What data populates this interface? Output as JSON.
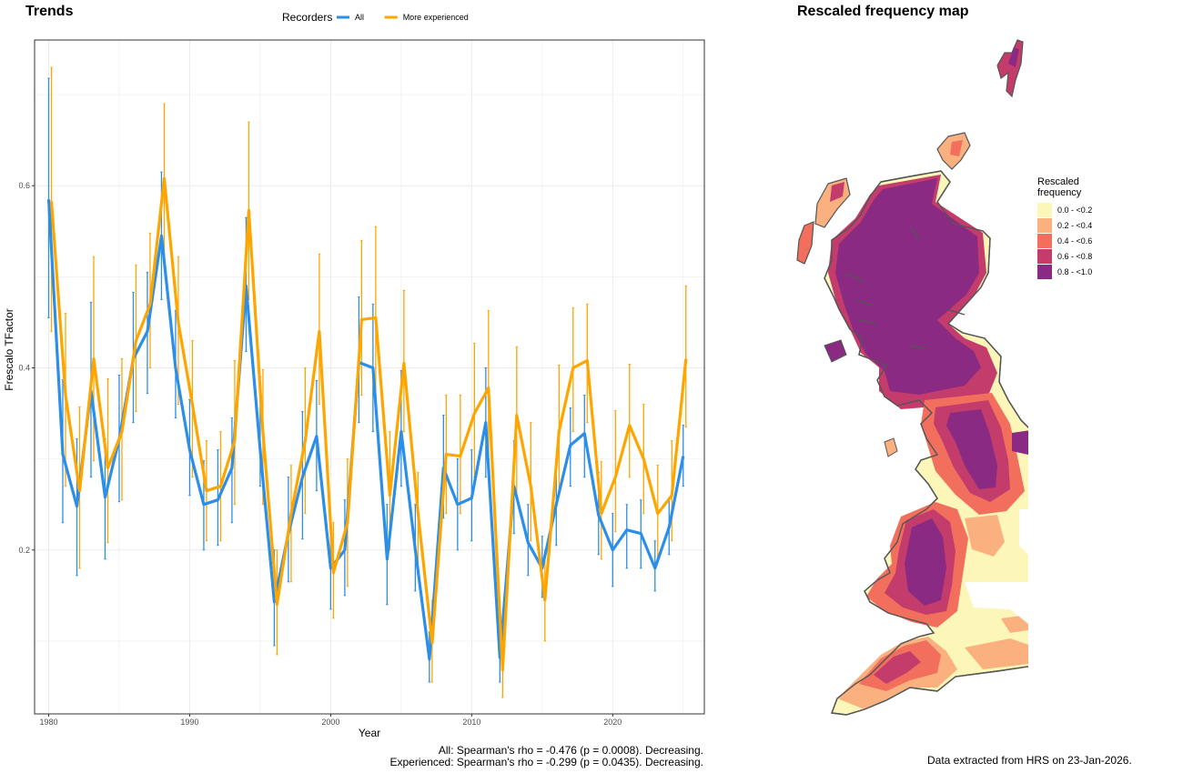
{
  "trends": {
    "title": "Trends",
    "stats_all": "All: Spearman's rho = -0.476 (p = 0.0008). Decreasing.",
    "stats_experienced": "Experienced: Spearman's rho = -0.299 (p = 0.0435). Decreasing."
  },
  "map": {
    "title": "Rescaled frequency map",
    "legend_title_line1": "Rescaled",
    "legend_title_line2": "frequency",
    "legend_items": [
      {
        "label": "0.0 - <0.2",
        "color": "#fcf7b9"
      },
      {
        "label": "0.2 - <0.4",
        "color": "#fab17f"
      },
      {
        "label": "0.4 - <0.6",
        "color": "#f16f5c"
      },
      {
        "label": "0.6 - <0.8",
        "color": "#c33c6c"
      },
      {
        "label": "0.8 - <1.0",
        "color": "#8b2a82"
      }
    ]
  },
  "footer": {
    "source": "Data extracted from HRS on 23-Jan-2026."
  },
  "chart_data": {
    "type": "line",
    "title": "Trends",
    "xlabel": "Year",
    "ylabel": "Frescalo TFactor",
    "legend_title": "Recorders",
    "legend_position": "top",
    "grid": true,
    "xlim": [
      1979,
      2026.5
    ],
    "ylim": [
      0.02,
      0.76
    ],
    "x_ticks": [
      1980,
      1990,
      2000,
      2010,
      2020
    ],
    "y_ticks": [
      0.2,
      0.4,
      0.6
    ],
    "y_tick_labels": [
      "0.2",
      "0.4",
      "0.6"
    ],
    "x": [
      1980,
      1981,
      1982,
      1983,
      1984,
      1985,
      1986,
      1987,
      1988,
      1989,
      1990,
      1991,
      1992,
      1993,
      1994,
      1995,
      1996,
      1997,
      1998,
      1999,
      2000,
      2001,
      2002,
      2003,
      2004,
      2005,
      2006,
      2007,
      2008,
      2009,
      2010,
      2011,
      2012,
      2013,
      2014,
      2015,
      2016,
      2017,
      2018,
      2019,
      2020,
      2021,
      2022,
      2023,
      2024,
      2025
    ],
    "series": [
      {
        "name": "All",
        "color": "#2b8ee8",
        "values": [
          0.585,
          0.305,
          0.248,
          0.375,
          0.258,
          0.322,
          0.41,
          0.44,
          0.545,
          0.4,
          0.31,
          0.25,
          0.255,
          0.29,
          0.49,
          0.31,
          0.143,
          0.218,
          0.28,
          0.325,
          0.18,
          0.2,
          0.406,
          0.4,
          0.19,
          0.33,
          0.2,
          0.08,
          0.29,
          0.25,
          0.257,
          0.34,
          0.082,
          0.27,
          0.208,
          0.18,
          0.25,
          0.315,
          0.328,
          0.238,
          0.2,
          0.222,
          0.218,
          0.18,
          0.225,
          0.303
        ],
        "lower": [
          0.455,
          0.23,
          0.172,
          0.28,
          0.19,
          0.253,
          0.34,
          0.372,
          0.475,
          0.345,
          0.26,
          0.2,
          0.205,
          0.23,
          0.418,
          0.27,
          0.095,
          0.165,
          0.212,
          0.265,
          0.135,
          0.15,
          0.34,
          0.33,
          0.14,
          0.27,
          0.155,
          0.055,
          0.235,
          0.2,
          0.21,
          0.28,
          0.055,
          0.218,
          0.172,
          0.148,
          0.205,
          0.27,
          0.28,
          0.195,
          0.16,
          0.18,
          0.18,
          0.155,
          0.195,
          0.27
        ],
        "upper": [
          0.718,
          0.387,
          0.322,
          0.472,
          0.322,
          0.392,
          0.483,
          0.505,
          0.615,
          0.463,
          0.365,
          0.298,
          0.31,
          0.345,
          0.565,
          0.39,
          0.2,
          0.28,
          0.352,
          0.386,
          0.225,
          0.255,
          0.478,
          0.47,
          0.25,
          0.397,
          0.25,
          0.11,
          0.348,
          0.3,
          0.31,
          0.4,
          0.11,
          0.32,
          0.25,
          0.215,
          0.3,
          0.356,
          0.37,
          0.285,
          0.24,
          0.25,
          0.255,
          0.21,
          0.255,
          0.337
        ]
      },
      {
        "name": "More experienced",
        "color": "#ffa500",
        "values": [
          0.583,
          0.37,
          0.265,
          0.41,
          0.29,
          0.33,
          0.43,
          0.47,
          0.608,
          0.45,
          0.36,
          0.265,
          0.27,
          0.32,
          0.573,
          0.33,
          0.14,
          0.24,
          0.32,
          0.44,
          0.175,
          0.23,
          0.453,
          0.455,
          0.26,
          0.405,
          0.24,
          0.098,
          0.305,
          0.303,
          0.35,
          0.378,
          0.068,
          0.348,
          0.27,
          0.145,
          0.33,
          0.4,
          0.408,
          0.24,
          0.28,
          0.337,
          0.3,
          0.24,
          0.26,
          0.41
        ],
        "lower": [
          0.44,
          0.27,
          0.18,
          0.298,
          0.208,
          0.255,
          0.352,
          0.4,
          0.525,
          0.36,
          0.28,
          0.21,
          0.21,
          0.25,
          0.475,
          0.25,
          0.085,
          0.165,
          0.24,
          0.36,
          0.125,
          0.16,
          0.37,
          0.37,
          0.2,
          0.33,
          0.18,
          0.055,
          0.24,
          0.24,
          0.28,
          0.3,
          0.038,
          0.26,
          0.21,
          0.1,
          0.26,
          0.33,
          0.34,
          0.19,
          0.22,
          0.28,
          0.24,
          0.19,
          0.21,
          0.335
        ],
        "upper": [
          0.73,
          0.46,
          0.357,
          0.522,
          0.388,
          0.41,
          0.513,
          0.548,
          0.69,
          0.522,
          0.43,
          0.32,
          0.33,
          0.408,
          0.67,
          0.398,
          0.2,
          0.293,
          0.4,
          0.525,
          0.23,
          0.3,
          0.54,
          0.555,
          0.33,
          0.485,
          0.285,
          0.145,
          0.37,
          0.37,
          0.427,
          0.463,
          0.105,
          0.423,
          0.34,
          0.2,
          0.403,
          0.466,
          0.47,
          0.297,
          0.353,
          0.404,
          0.36,
          0.293,
          0.32,
          0.49
        ]
      }
    ]
  }
}
